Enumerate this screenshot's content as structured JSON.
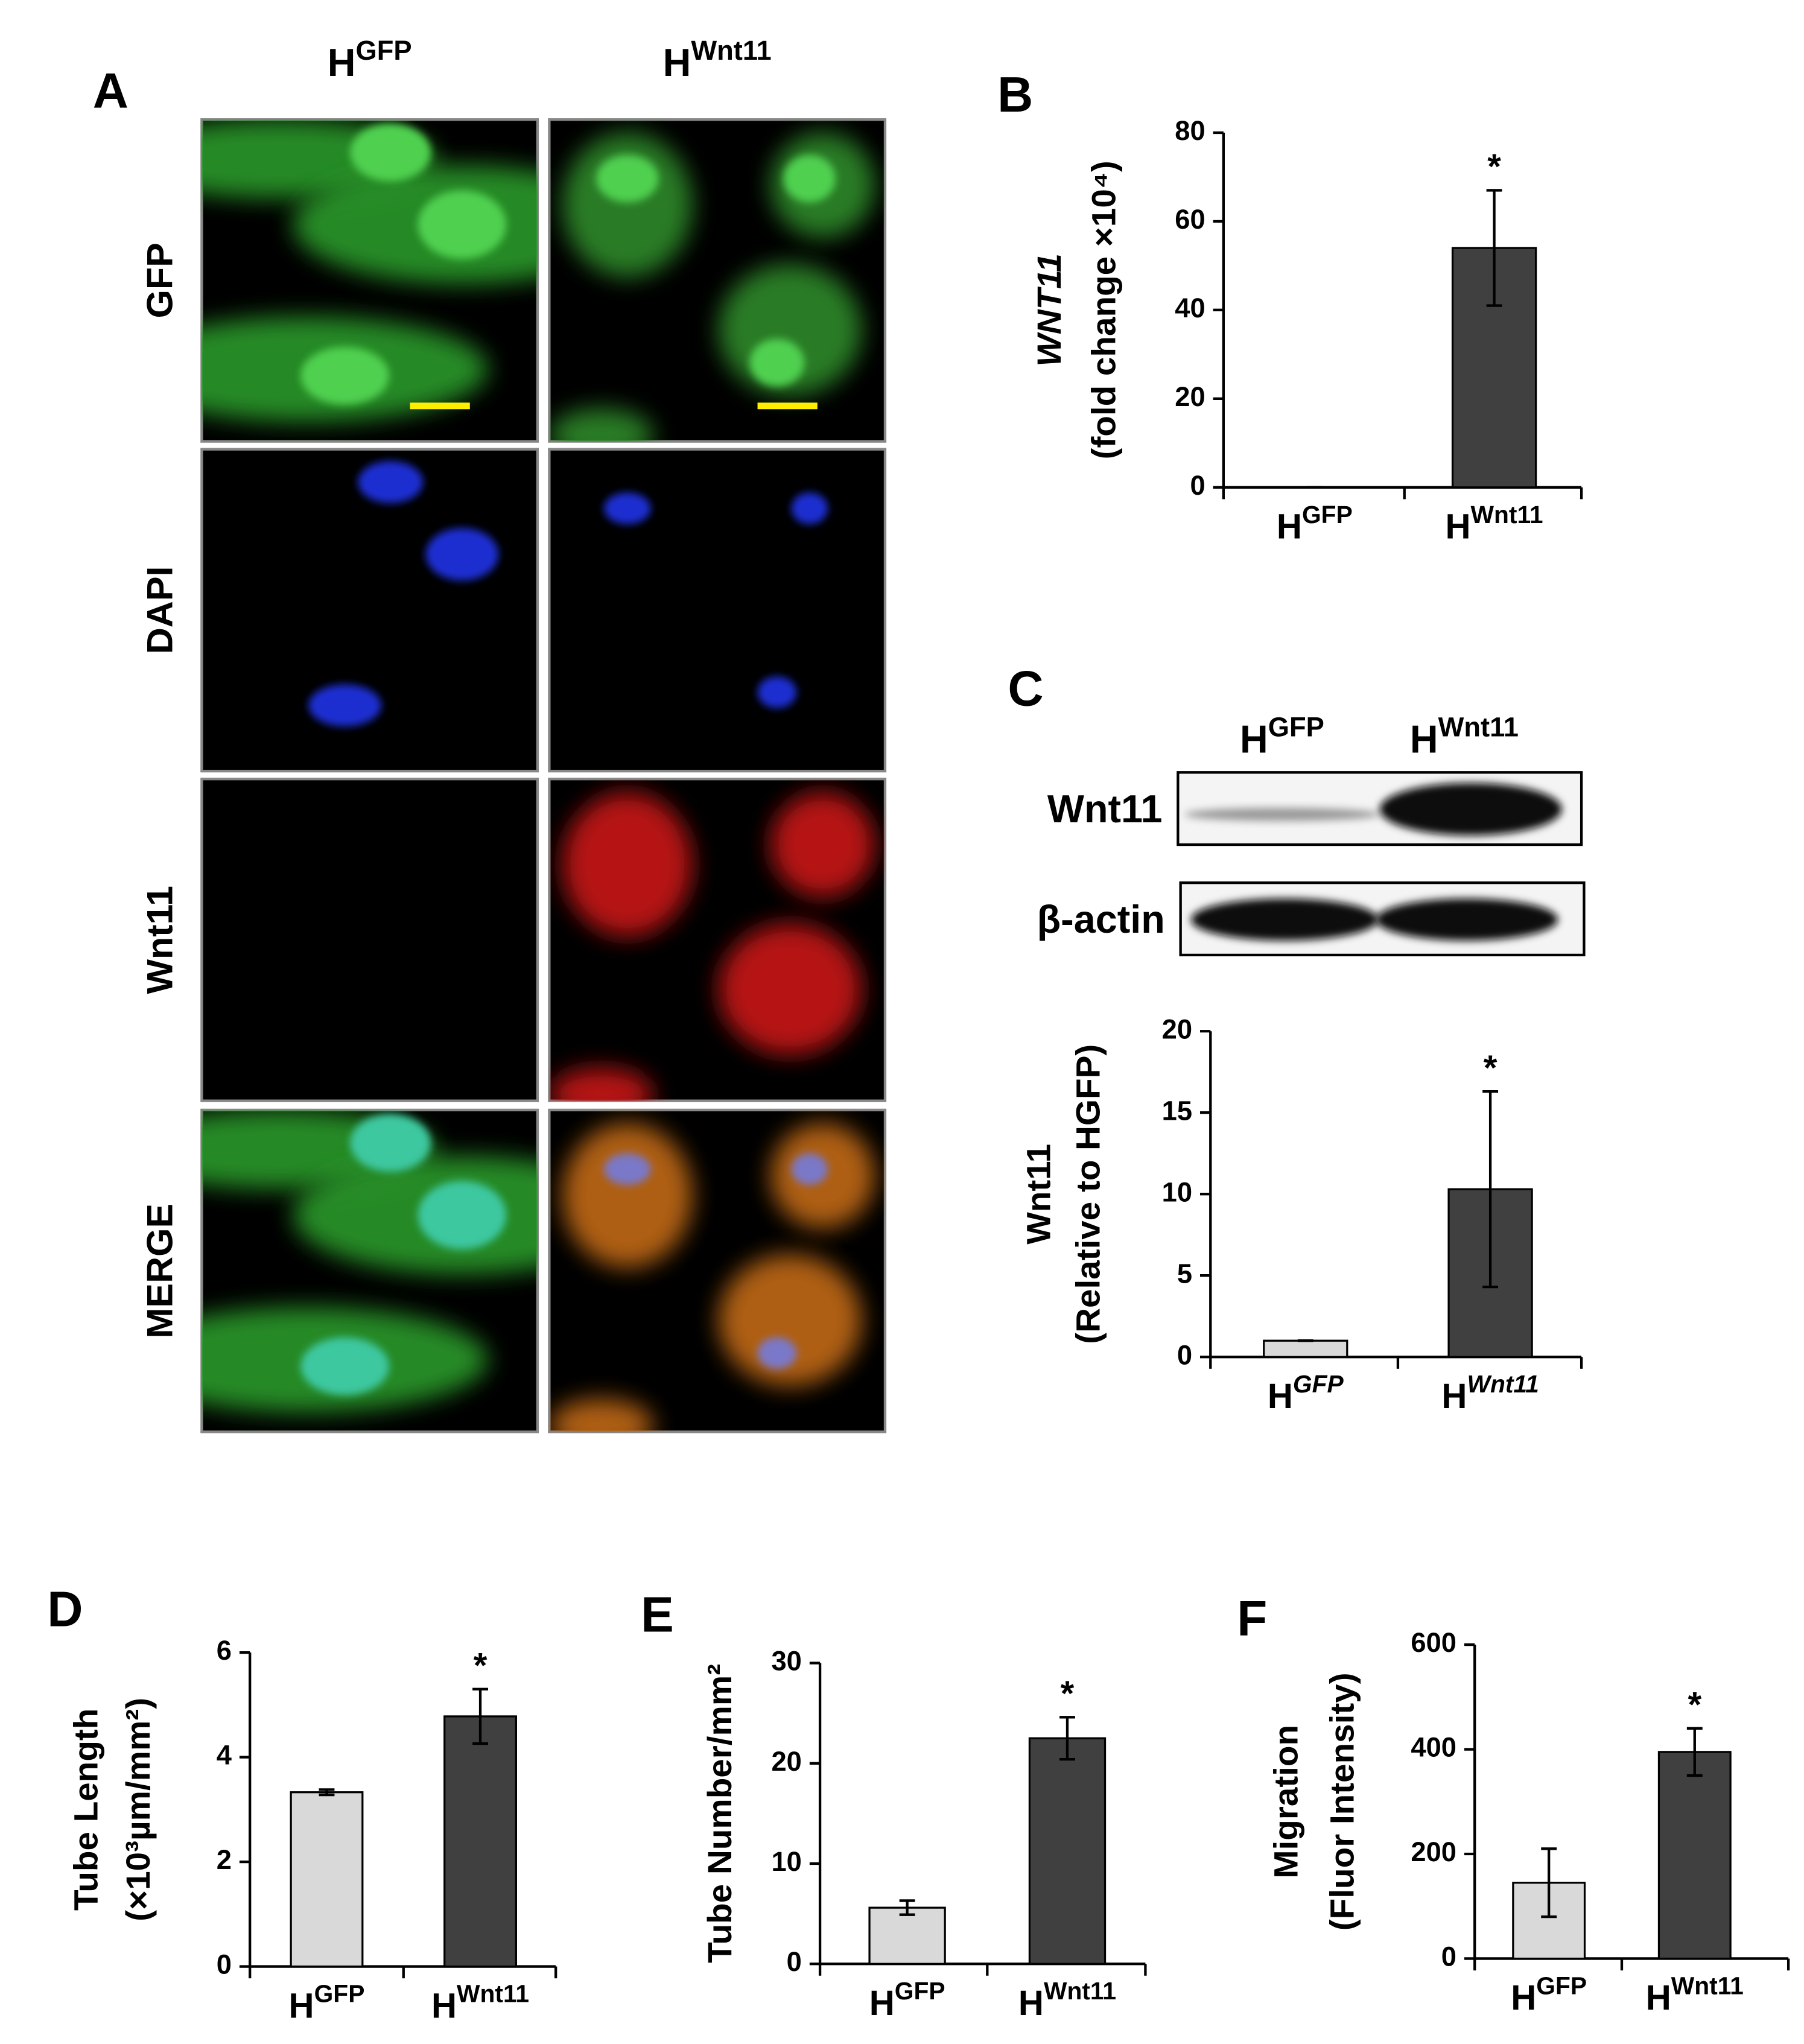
{
  "panel_labels": [
    "A",
    "B",
    "C",
    "D",
    "E",
    "F"
  ],
  "panel_a": {
    "columns": [
      "HGFP",
      "HWnt11"
    ],
    "rows": [
      "GFP",
      "DAPI",
      "Wnt11",
      "MERGE"
    ]
  },
  "panel_c_blot": {
    "columns": [
      "HGFP",
      "HWnt11"
    ],
    "rows": [
      "Wnt11",
      "β-actin"
    ]
  },
  "chart_data": [
    {
      "type": "bar",
      "categories": [
        "HGFP",
        "HWnt11"
      ],
      "values": [
        0,
        54
      ],
      "errors": [
        0,
        13
      ],
      "colors": [
        "#d9d9d9",
        "#404040"
      ],
      "ylim": [
        0,
        80
      ],
      "yticks": [
        0,
        20,
        40,
        60,
        80
      ],
      "ylabel": [
        "WNT11",
        "(fold change ×10⁴)"
      ],
      "annotations": [
        {
          "text": "*",
          "category": "HWnt11"
        }
      ]
    },
    {
      "type": "bar",
      "categories": [
        "HGFP",
        "HWnt11"
      ],
      "values": [
        1,
        10.3
      ],
      "errors": [
        0,
        6
      ],
      "colors": [
        "#d9d9d9",
        "#404040"
      ],
      "ylim": [
        0,
        20
      ],
      "yticks": [
        0,
        5,
        10,
        15,
        20
      ],
      "ylabel": [
        "Wnt11",
        "(Relative to HGFP)"
      ],
      "annotations": [
        {
          "text": "*",
          "category": "HWnt11"
        }
      ]
    },
    {
      "type": "bar",
      "categories": [
        "HGFP",
        "HWnt11"
      ],
      "values": [
        3.33,
        4.78
      ],
      "errors": [
        0.05,
        0.52
      ],
      "colors": [
        "#d9d9d9",
        "#404040"
      ],
      "ylim": [
        0,
        6
      ],
      "yticks": [
        0,
        2,
        4,
        6
      ],
      "ylabel": [
        "Tube Length",
        "(×10³µm/mm²)"
      ],
      "annotations": [
        {
          "text": "*",
          "category": "HWnt11"
        }
      ]
    },
    {
      "type": "bar",
      "categories": [
        "HGFP",
        "HWnt11"
      ],
      "values": [
        5.6,
        22.5
      ],
      "errors": [
        0.7,
        2.1
      ],
      "colors": [
        "#d9d9d9",
        "#404040"
      ],
      "ylim": [
        0,
        30
      ],
      "yticks": [
        0,
        10,
        20,
        30
      ],
      "ylabel": [
        "Tube Number/mm²"
      ],
      "annotations": [
        {
          "text": "*",
          "category": "HWnt11"
        }
      ]
    },
    {
      "type": "bar",
      "categories": [
        "HGFP",
        "HWnt11"
      ],
      "values": [
        145,
        395
      ],
      "errors": [
        65,
        45
      ],
      "colors": [
        "#d9d9d9",
        "#404040"
      ],
      "ylim": [
        0,
        600
      ],
      "yticks": [
        0,
        200,
        400,
        600
      ],
      "ylabel": [
        "Migration",
        "(Fluor Intensity)"
      ],
      "annotations": [
        {
          "text": "*",
          "category": "HWnt11"
        }
      ]
    }
  ]
}
